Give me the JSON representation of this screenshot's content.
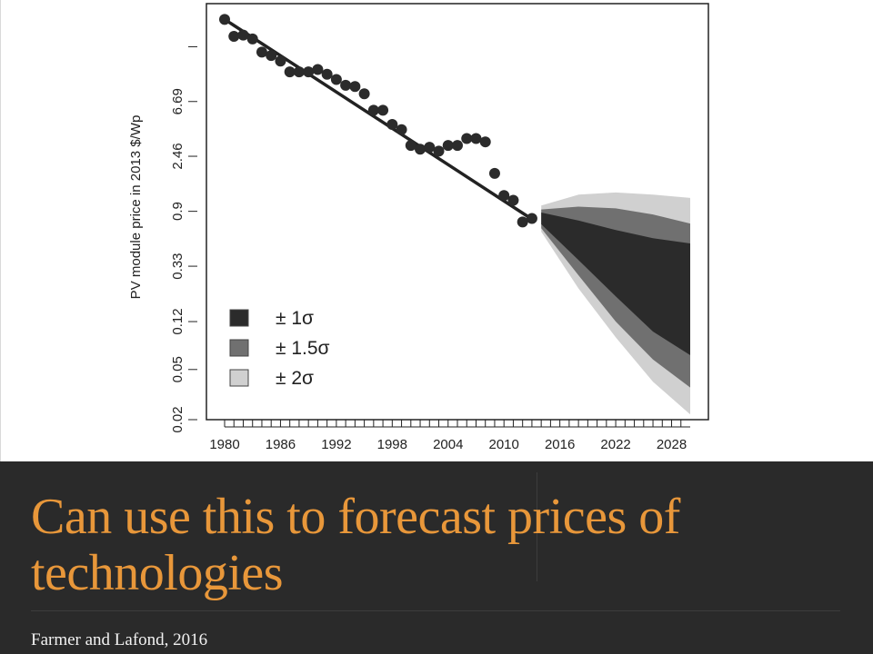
{
  "slide": {
    "title": "Can use this to forecast prices of technologies",
    "citation": "Farmer and Lafond, 2016"
  },
  "colors": {
    "title": "#e8973a",
    "band_background": "#2a2a2a",
    "points": "#2b2b2b",
    "sigma1": "#2b2b2b",
    "sigma15": "#707070",
    "sigma2": "#d0d0d0"
  },
  "chart_data": {
    "type": "scatter",
    "title": "",
    "xlabel": "",
    "ylabel": "PV module price in 2013 $/Wp",
    "y_scale": "log",
    "xlim": [
      1980,
      2030
    ],
    "ylim": [
      0.02,
      40
    ],
    "x_ticks": [
      "1980",
      "1986",
      "1992",
      "1998",
      "2004",
      "2010",
      "2016",
      "2022",
      "2028"
    ],
    "y_ticks": [
      "0.02",
      "0.05",
      "0.12",
      "0.33",
      "0.9",
      "2.46",
      "6.69"
    ],
    "series": [
      {
        "type": "scatter",
        "x": [
          1980,
          1981,
          1982,
          1983,
          1984,
          1985,
          1986,
          1987,
          1988,
          1989,
          1990,
          1991,
          1992,
          1993,
          1994,
          1995,
          1996,
          1997,
          1998,
          1999,
          2000,
          2001,
          2002,
          2003,
          2004,
          2005,
          2006,
          2007,
          2008,
          2009,
          2010,
          2011,
          2012,
          2013
        ],
        "y": [
          30.0,
          22.0,
          22.5,
          21.0,
          16.5,
          15.5,
          14.0,
          11.5,
          11.5,
          11.5,
          12.0,
          11.0,
          10.0,
          9.0,
          8.8,
          7.7,
          5.7,
          5.7,
          4.4,
          4.0,
          3.0,
          2.8,
          2.9,
          2.7,
          3.0,
          3.0,
          3.4,
          3.4,
          3.2,
          1.8,
          1.2,
          1.1,
          0.74,
          0.79
        ]
      },
      {
        "type": "line",
        "x": [
          1980,
          2013
        ],
        "y": [
          30.0,
          0.78
        ]
      }
    ],
    "forecast_bands": [
      {
        "label": "± 1σ",
        "x": [
          2014,
          2018,
          2022,
          2026,
          2030
        ],
        "lower": [
          0.71,
          0.37,
          0.19,
          0.1,
          0.065
        ],
        "upper": [
          0.88,
          0.76,
          0.64,
          0.55,
          0.5
        ]
      },
      {
        "label": "± 1.5σ",
        "x": [
          2014,
          2018,
          2022,
          2026,
          2030
        ],
        "lower": [
          0.66,
          0.28,
          0.12,
          0.06,
          0.036
        ],
        "upper": [
          0.93,
          0.98,
          0.95,
          0.85,
          0.72
        ]
      },
      {
        "label": "± 2σ",
        "x": [
          2014,
          2018,
          2022,
          2026,
          2030
        ],
        "lower": [
          0.62,
          0.22,
          0.09,
          0.04,
          0.022
        ],
        "upper": [
          1.0,
          1.22,
          1.27,
          1.22,
          1.15
        ]
      }
    ],
    "legend": {
      "placement": "bottom-left",
      "entries": [
        {
          "label": "± 1σ",
          "color": "#2b2b2b"
        },
        {
          "label": "± 1.5σ",
          "color": "#707070"
        },
        {
          "label": "± 2σ",
          "color": "#d0d0d0"
        }
      ]
    }
  }
}
